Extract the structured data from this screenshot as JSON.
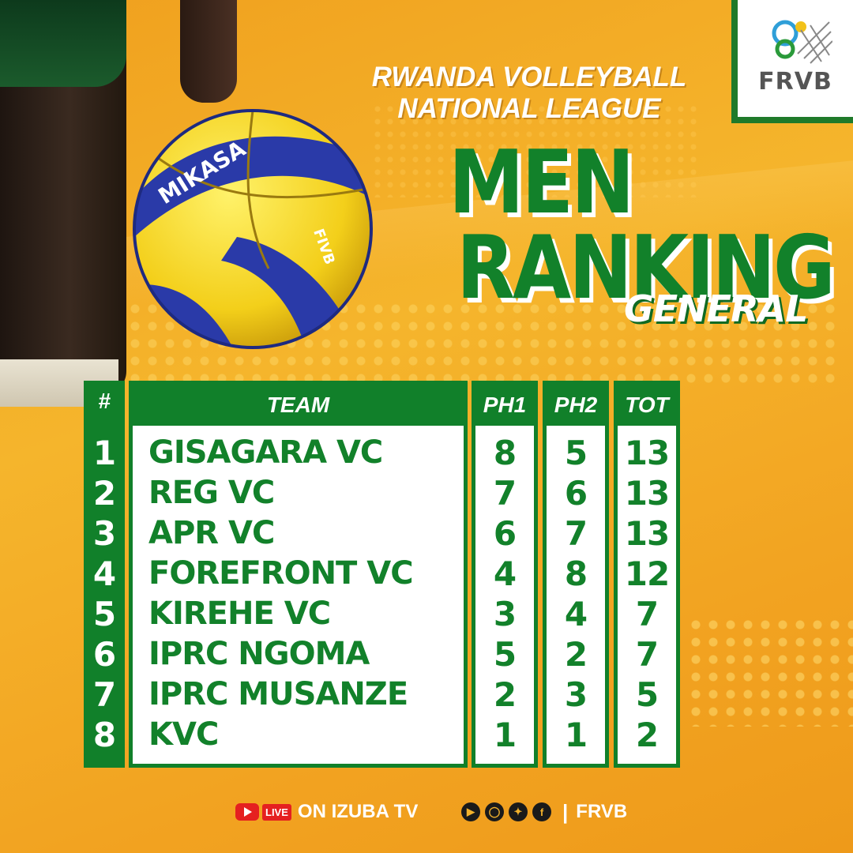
{
  "header": {
    "league_line1": "RWANDA VOLLEYBALL",
    "league_line2": "NATIONAL LEAGUE",
    "title_line1": "MEN",
    "title_line2": "RANKING",
    "subtitle": "GENERAL"
  },
  "logo": {
    "text": "FRVB",
    "icon": "frvb-logo-icon"
  },
  "ball": {
    "brand": "MIKASA",
    "mark": "FIVB"
  },
  "table": {
    "headers": {
      "rank": "#",
      "team": "TEAM",
      "ph1": "PH1",
      "ph2": "PH2",
      "tot": "TOT"
    },
    "rows": [
      {
        "rank": "1",
        "team": "GISAGARA VC",
        "ph1": "8",
        "ph2": "5",
        "tot": "13"
      },
      {
        "rank": "2",
        "team": "REG VC",
        "ph1": "7",
        "ph2": "6",
        "tot": "13"
      },
      {
        "rank": "3",
        "team": "APR VC",
        "ph1": "6",
        "ph2": "7",
        "tot": "13"
      },
      {
        "rank": "4",
        "team": "FOREFRONT VC",
        "ph1": "4",
        "ph2": "8",
        "tot": "12"
      },
      {
        "rank": "5",
        "team": "KIREHE VC",
        "ph1": "3",
        "ph2": "4",
        "tot": "7"
      },
      {
        "rank": "6",
        "team": "IPRC NGOMA",
        "ph1": "5",
        "ph2": "2",
        "tot": "7"
      },
      {
        "rank": "7",
        "team": "IPRC MUSANZE",
        "ph1": "2",
        "ph2": "3",
        "tot": "5"
      },
      {
        "rank": "8",
        "team": "KVC",
        "ph1": "1",
        "ph2": "1",
        "tot": "2"
      }
    ]
  },
  "footer": {
    "live_badge": "LIVE",
    "live_text": "ON IZUBA TV",
    "social_icons": [
      "youtube-icon",
      "instagram-icon",
      "twitter-icon",
      "facebook-icon"
    ],
    "separator": "|",
    "handle": "FRVB"
  },
  "colors": {
    "green": "#11802a",
    "orange": "#f3a624",
    "white": "#ffffff"
  }
}
